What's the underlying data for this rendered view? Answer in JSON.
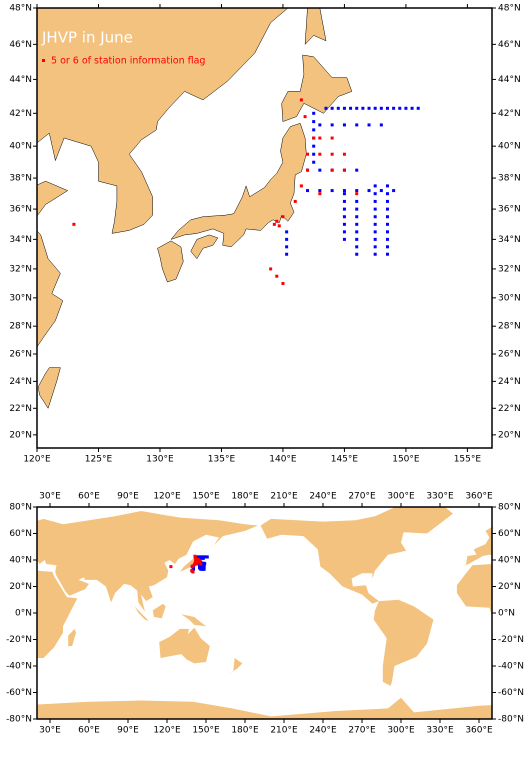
{
  "title": "JHVP in June",
  "legend": {
    "label": "5 or 6 of station information flag",
    "color": "#ff0000"
  },
  "regional_map": {
    "xlim": [
      120,
      157
    ],
    "ylim": [
      19,
      48
    ],
    "xticks": [
      {
        "value": 120,
        "label": "120°E"
      },
      {
        "value": 125,
        "label": "125°E"
      },
      {
        "value": 130,
        "label": "130°E"
      },
      {
        "value": 135,
        "label": "135°E"
      },
      {
        "value": 140,
        "label": "140°E"
      },
      {
        "value": 145,
        "label": "145°E"
      },
      {
        "value": 150,
        "label": "150°E"
      },
      {
        "value": 155,
        "label": "155°E"
      }
    ],
    "yticks": [
      {
        "value": 20,
        "label": "20°N"
      },
      {
        "value": 22,
        "label": "22°N"
      },
      {
        "value": 24,
        "label": "24°N"
      },
      {
        "value": 26,
        "label": "26°N"
      },
      {
        "value": 28,
        "label": "28°N"
      },
      {
        "value": 30,
        "label": "30°N"
      },
      {
        "value": 32,
        "label": "32°N"
      },
      {
        "value": 34,
        "label": "34°N"
      },
      {
        "value": 36,
        "label": "36°N"
      },
      {
        "value": 38,
        "label": "38°N"
      },
      {
        "value": 40,
        "label": "40°N"
      },
      {
        "value": 42,
        "label": "42°N"
      },
      {
        "value": 44,
        "label": "44°N"
      },
      {
        "value": 46,
        "label": "46°N"
      },
      {
        "value": 48,
        "label": "48°N"
      }
    ]
  },
  "global_map": {
    "xlim": [
      20,
      370
    ],
    "ylim": [
      -80,
      80
    ],
    "xticks": [
      {
        "value": 30,
        "label": "30°E"
      },
      {
        "value": 60,
        "label": "60°E"
      },
      {
        "value": 90,
        "label": "90°E"
      },
      {
        "value": 120,
        "label": "120°E"
      },
      {
        "value": 150,
        "label": "150°E"
      },
      {
        "value": 180,
        "label": "180°E"
      },
      {
        "value": 210,
        "label": "210°E"
      },
      {
        "value": 240,
        "label": "240°E"
      },
      {
        "value": 270,
        "label": "270°E"
      },
      {
        "value": 300,
        "label": "300°E"
      },
      {
        "value": 330,
        "label": "330°E"
      },
      {
        "value": 360,
        "label": "360°E"
      }
    ],
    "yticks": [
      {
        "value": -80,
        "label": "-80°N"
      },
      {
        "value": -60,
        "label": "-60°N"
      },
      {
        "value": -40,
        "label": "-40°N"
      },
      {
        "value": -20,
        "label": "-20°N"
      },
      {
        "value": 0,
        "label": "0°N"
      },
      {
        "value": 20,
        "label": "20°N"
      },
      {
        "value": 40,
        "label": "40°N"
      },
      {
        "value": 60,
        "label": "60°N"
      },
      {
        "value": 80,
        "label": "80°N"
      }
    ]
  },
  "stations": {
    "color": "#0000ff",
    "lon": [
      143.5,
      144,
      144.5,
      145,
      145.5,
      146,
      146.5,
      147,
      147.5,
      148,
      148.5,
      149,
      149.5,
      150,
      150.5,
      151,
      143,
      144,
      145,
      146,
      147,
      148,
      147.5,
      147.5,
      147.5,
      147.5,
      147.5,
      147.5,
      147.5,
      147.5,
      147.5,
      147.5,
      148.5,
      148.5,
      148.5,
      148.5,
      148.5,
      148.5,
      148.5,
      148.5,
      148.5,
      148.5,
      146,
      146,
      146,
      146,
      146,
      146,
      146,
      146,
      145,
      145,
      145,
      145,
      145,
      145,
      145,
      142,
      143,
      144,
      145,
      146,
      147,
      148,
      149,
      142,
      143,
      144,
      145,
      146,
      140.3,
      140.3,
      140.3,
      140.3,
      142.5,
      142.5,
      142.5,
      142.5,
      142.5,
      142.5,
      142.5
    ],
    "lat": [
      42.3,
      42.3,
      42.3,
      42.3,
      42.3,
      42.3,
      42.3,
      42.3,
      42.3,
      42.3,
      42.3,
      42.3,
      42.3,
      42.3,
      42.3,
      42.3,
      41.3,
      41.3,
      41.3,
      41.3,
      41.3,
      41.3,
      33,
      33.5,
      34,
      34.5,
      35,
      35.5,
      36,
      36.5,
      37,
      37.5,
      33,
      33.5,
      34,
      34.5,
      35,
      35.5,
      36,
      36.5,
      37,
      37.5,
      33,
      33.5,
      34,
      34.5,
      35,
      35.5,
      36,
      36.5,
      34,
      34.5,
      35,
      35.5,
      36,
      36.5,
      37,
      37.2,
      37.2,
      37.2,
      37.2,
      37.2,
      37.2,
      37.2,
      37.2,
      38.5,
      38.5,
      38.5,
      38.5,
      38.5,
      33,
      33.5,
      34,
      34.5,
      39,
      39.5,
      40,
      40.5,
      41,
      41.5,
      42
    ]
  },
  "flagged_stations": {
    "lon": [
      139.3,
      139.5,
      139.7,
      140,
      141,
      141.5,
      142,
      142,
      142.5,
      143,
      144,
      141.8,
      143,
      144,
      145,
      145,
      144,
      143,
      146,
      139,
      139.5,
      140,
      123,
      141.5
    ],
    "lat": [
      35,
      35.2,
      34.9,
      35.5,
      36.5,
      37.5,
      38.5,
      39.5,
      40.5,
      40.5,
      40.5,
      41.8,
      39.5,
      39.5,
      39.5,
      38.5,
      38.5,
      37,
      37,
      32,
      31.5,
      31,
      35,
      42.8
    ]
  }
}
